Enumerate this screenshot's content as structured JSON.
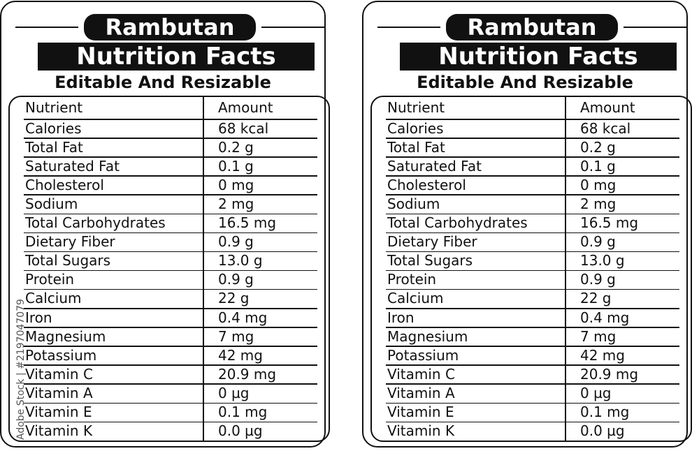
{
  "header": {
    "fruit": "Rambutan",
    "title": "Nutrition Facts",
    "subtitle": "Editable And Resizable"
  },
  "table": {
    "columns": [
      "Nutrient",
      "Amount"
    ],
    "rows": [
      [
        "Calories",
        "68 kcal"
      ],
      [
        "Total Fat",
        "0.2 g"
      ],
      [
        "Saturated Fat",
        "0.1 g"
      ],
      [
        "Cholesterol",
        "0 mg"
      ],
      [
        "Sodium",
        "2 mg"
      ],
      [
        "Total Carbohydrates",
        "16.5 mg"
      ],
      [
        "Dietary Fiber",
        "0.9 g"
      ],
      [
        "Total Sugars",
        "13.0 g"
      ],
      [
        "Protein",
        "0.9 g"
      ],
      [
        "Calcium",
        "22 g"
      ],
      [
        "Iron",
        "0.4 mg"
      ],
      [
        "Magnesium",
        "7 mg"
      ],
      [
        "Potassium",
        "42 mg"
      ],
      [
        "Vitamin C",
        "20.9 mg"
      ],
      [
        "Vitamin A",
        "0 µg"
      ],
      [
        "Vitamin E",
        "0.1 mg"
      ],
      [
        "Vitamin K",
        "0.0 µg"
      ]
    ]
  },
  "watermark": "Adobe Stock | #2197047079"
}
